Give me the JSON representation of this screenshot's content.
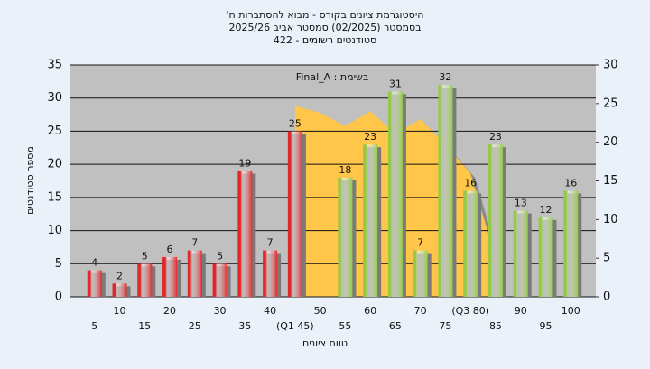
{
  "chart_data": {
    "type": "bar",
    "title": "היסטוגרמת ציונים בקורס - מבוא להסתברות ח'",
    "subtitle": "בסמסטר  (02/2025)  סמסטר אביב 2025/26",
    "note": "סטודנטים רשומים - 422",
    "annotation": "בשימת : Final_A",
    "x_label": "טווח ציונים",
    "y_label": "מספר סטודנטים",
    "x": [
      5,
      10,
      15,
      20,
      25,
      30,
      35,
      40,
      45,
      50,
      55,
      60,
      65,
      70,
      75,
      80,
      85,
      90,
      95,
      100
    ],
    "values": [
      4,
      2,
      5,
      6,
      7,
      5,
      19,
      7,
      25,
      null,
      18,
      23,
      31,
      7,
      32,
      16,
      23,
      13,
      12,
      16
    ],
    "bar_colors": [
      "#e0282c",
      "#e0282c",
      "#e0282c",
      "#e0282c",
      "#e0282c",
      "#e0282c",
      "#e0282c",
      "#e0282c",
      "#e0282c",
      null,
      "#96c84a",
      "#96c84a",
      "#96c84a",
      "#96c84a",
      "#96c84a",
      "#96c84a",
      "#96c84a",
      "#96c84a",
      "#96c84a",
      "#96c84a"
    ],
    "area": {
      "x": [
        45,
        50,
        55,
        60,
        65,
        70,
        75,
        80,
        85
      ],
      "values": [
        24.7,
        23.8,
        22.1,
        24,
        21.1,
        23,
        19.7,
        16,
        5
      ],
      "color": "#ffc64a",
      "axis": "y2"
    },
    "xlim": [
      0,
      105
    ],
    "xticks": [
      5,
      10,
      15,
      20,
      25,
      30,
      35,
      40,
      {
        "value": 45,
        "label": "(Q1 45)"
      },
      50,
      55,
      60,
      65,
      70,
      75,
      {
        "value": 80,
        "label": "(Q3 80)"
      },
      85,
      90,
      95,
      100
    ],
    "ylim": [
      0,
      35
    ],
    "yticks": [
      0,
      5,
      10,
      15,
      20,
      25,
      30,
      35
    ],
    "y2lim": [
      0,
      30
    ],
    "y2ticks": [
      0,
      5,
      10,
      15,
      20,
      25,
      30
    ],
    "grid": true
  }
}
